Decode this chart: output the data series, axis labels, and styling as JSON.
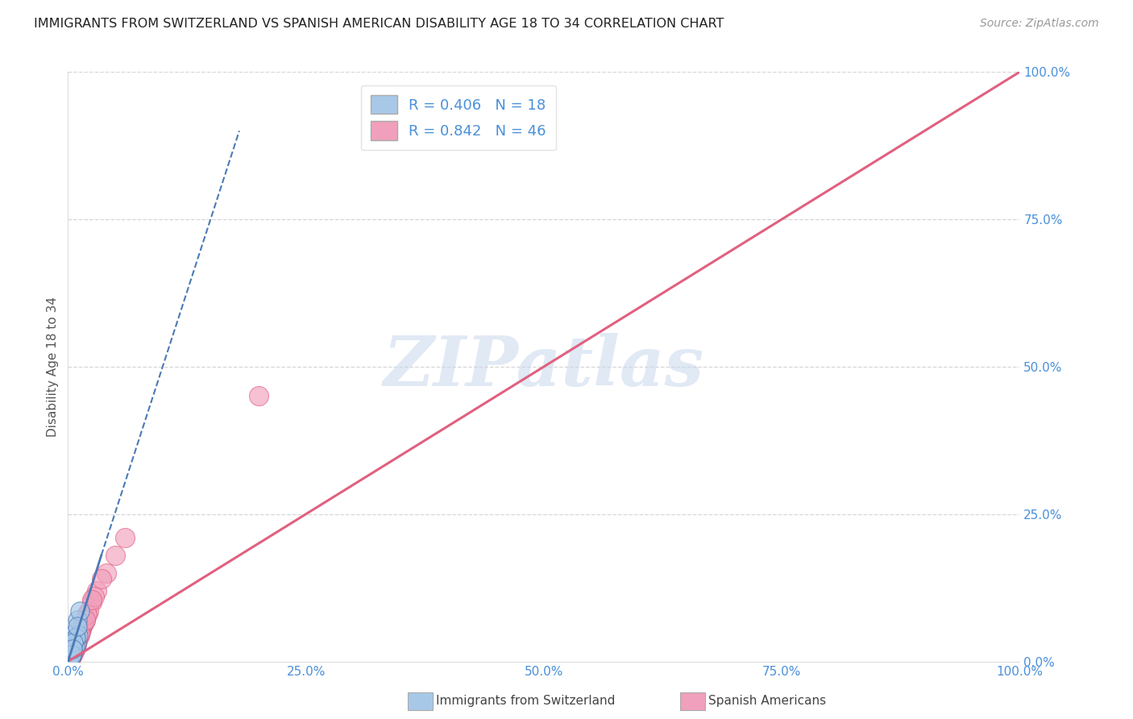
{
  "title": "IMMIGRANTS FROM SWITZERLAND VS SPANISH AMERICAN DISABILITY AGE 18 TO 34 CORRELATION CHART",
  "source": "Source: ZipAtlas.com",
  "ylabel": "Disability Age 18 to 34",
  "legend1_label": "R = 0.406   N = 18",
  "legend2_label": "R = 0.842   N = 46",
  "blue_color": "#A8C8E8",
  "pink_color": "#F0A0BC",
  "blue_line_color": "#4A7AB5",
  "pink_line_color": "#E06080",
  "watermark_text": "ZIPatlas",
  "background_color": "#FFFFFF",
  "grid_color": "#CCCCCC",
  "title_color": "#222222",
  "tick_color": "#4A90D9",
  "ylabel_color": "#555555",
  "source_color": "#999999",
  "blue_points_x": [
    0.3,
    0.5,
    0.8,
    1.0,
    1.2,
    0.4,
    0.6,
    0.9,
    1.1,
    0.2,
    0.7,
    0.5,
    0.3,
    0.8,
    0.6,
    0.4,
    1.0,
    0.5
  ],
  "blue_points_y": [
    3.5,
    1.5,
    5.0,
    7.0,
    8.5,
    1.0,
    2.0,
    3.0,
    4.5,
    0.5,
    2.5,
    1.8,
    0.8,
    4.0,
    3.2,
    1.2,
    6.0,
    2.2
  ],
  "pink_points_x": [
    0.1,
    0.2,
    0.3,
    0.4,
    0.5,
    0.6,
    0.7,
    0.8,
    0.9,
    1.0,
    1.1,
    1.2,
    1.5,
    1.8,
    2.0,
    2.5,
    3.0,
    4.0,
    5.0,
    0.3,
    0.5,
    0.7,
    0.9,
    1.1,
    1.4,
    1.7,
    2.2,
    0.2,
    0.4,
    0.6,
    0.8,
    1.0,
    1.3,
    1.6,
    2.0,
    2.8,
    0.5,
    0.8,
    1.2,
    1.8,
    2.5,
    3.5,
    6.0,
    0.3,
    0.6,
    20.0
  ],
  "pink_points_y": [
    0.2,
    0.5,
    0.8,
    1.0,
    1.5,
    1.8,
    2.0,
    2.5,
    3.0,
    3.5,
    4.0,
    4.5,
    6.0,
    7.0,
    8.0,
    10.0,
    12.0,
    15.0,
    18.0,
    0.6,
    1.2,
    2.2,
    3.2,
    4.2,
    5.5,
    6.5,
    8.5,
    0.4,
    1.0,
    1.8,
    2.8,
    3.8,
    5.0,
    6.5,
    8.0,
    11.0,
    1.5,
    2.8,
    4.8,
    7.0,
    10.5,
    14.0,
    21.0,
    0.7,
    1.5,
    45.0
  ],
  "blue_line_x0": 0.0,
  "blue_line_y0": 0.0,
  "blue_line_x1": 3.5,
  "blue_line_y1": 18.0,
  "blue_dash_x0": 3.5,
  "blue_dash_y0": 18.0,
  "blue_dash_x1": 18.0,
  "blue_dash_y1": 90.0,
  "pink_line_x0": 0.0,
  "pink_line_y0": 0.0,
  "pink_line_x1": 100.0,
  "pink_line_y1": 100.0,
  "xlim": [
    0,
    100
  ],
  "ylim": [
    0,
    100
  ],
  "xticks": [
    0,
    25,
    50,
    75,
    100
  ],
  "yticks": [
    0,
    25,
    50,
    75,
    100
  ],
  "xticklabels": [
    "0.0%",
    "25.0%",
    "50.0%",
    "75.0%",
    "100.0%"
  ],
  "yticklabels": [
    "0.0%",
    "25.0%",
    "50.0%",
    "75.0%",
    "100.0%"
  ],
  "bottom_label1": "Immigrants from Switzerland",
  "bottom_label2": "Spanish Americans"
}
